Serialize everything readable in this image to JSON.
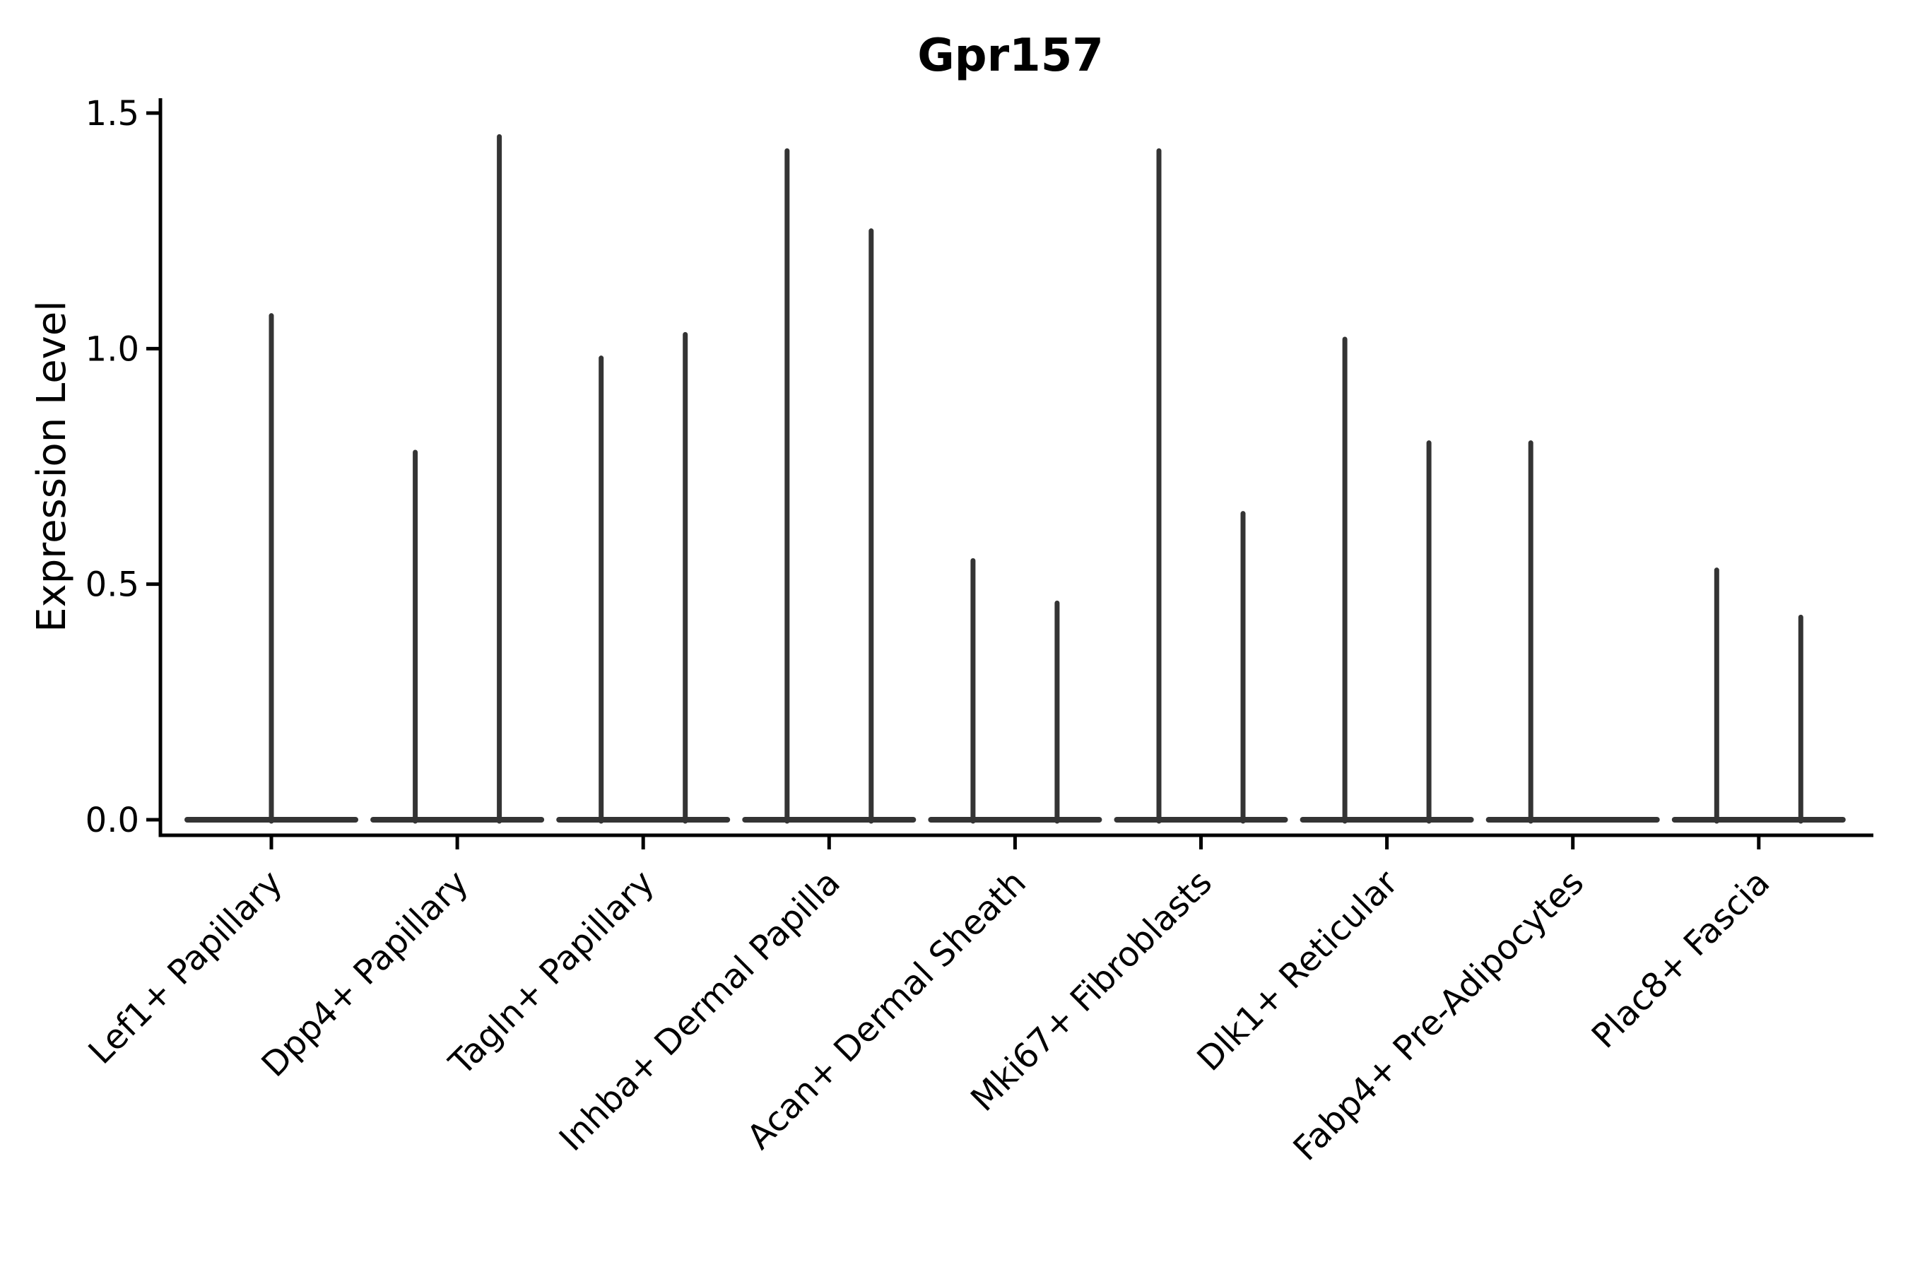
{
  "chart_data": {
    "type": "violin",
    "title": "Gpr157",
    "ylabel": "Expression Level",
    "xlabel": "",
    "grid": false,
    "legend": "none",
    "ylim": [
      -0.033,
      1.533
    ],
    "yticks": [
      {
        "label": "0.0",
        "value": 0.0
      },
      {
        "label": "0.5",
        "value": 0.5
      },
      {
        "label": "1.0",
        "value": 1.0
      },
      {
        "label": "1.5",
        "value": 1.5
      }
    ],
    "x_tick_rotation_deg": 45,
    "categories": [
      {
        "label": "Lef1+ Papillary",
        "violins": [
          {
            "position": "center",
            "max_expression": 1.07
          }
        ]
      },
      {
        "label": "Dpp4+ Papillary",
        "violins": [
          {
            "position": "left",
            "max_expression": 0.78
          },
          {
            "position": "right",
            "max_expression": 1.45
          }
        ]
      },
      {
        "label": "Tagln+ Papillary",
        "violins": [
          {
            "position": "left",
            "max_expression": 0.98
          },
          {
            "position": "right",
            "max_expression": 1.03
          }
        ]
      },
      {
        "label": "Inhba+ Dermal Papilla",
        "violins": [
          {
            "position": "left",
            "max_expression": 1.42
          },
          {
            "position": "right",
            "max_expression": 1.25
          }
        ]
      },
      {
        "label": "Acan+ Dermal Sheath",
        "violins": [
          {
            "position": "left",
            "max_expression": 0.55
          },
          {
            "position": "right",
            "max_expression": 0.46
          }
        ]
      },
      {
        "label": "Mki67+ Fibroblasts",
        "violins": [
          {
            "position": "left",
            "max_expression": 1.42
          },
          {
            "position": "right",
            "max_expression": 0.65
          }
        ]
      },
      {
        "label": "Dlk1+ Reticular",
        "violins": [
          {
            "position": "left",
            "max_expression": 1.02
          },
          {
            "position": "right",
            "max_expression": 0.8
          }
        ]
      },
      {
        "label": "Fabp4+ Pre-Adipocytes",
        "violins": [
          {
            "position": "left",
            "max_expression": 0.8
          },
          {
            "position": "right",
            "max_expression": 0.0
          }
        ]
      },
      {
        "label": "Plac8+ Fascia",
        "violins": [
          {
            "position": "left",
            "max_expression": 0.53
          },
          {
            "position": "right",
            "max_expression": 0.43
          }
        ]
      }
    ],
    "colors": {
      "violin_stroke": "#343434",
      "axis": "#000000",
      "text": "#000000",
      "background": "#ffffff"
    }
  }
}
